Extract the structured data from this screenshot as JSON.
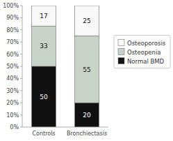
{
  "chart_data": {
    "type": "bar",
    "stacked": true,
    "categories": [
      "Controls",
      "Bronchiectasis"
    ],
    "series": [
      {
        "name": "Normal BMD",
        "color": "#111111",
        "values": [
          50,
          20
        ]
      },
      {
        "name": "Osteopenia",
        "color": "#c8d2c8",
        "values": [
          33,
          55
        ]
      },
      {
        "name": "Osteoporosis",
        "color": "#f8f8f8",
        "values": [
          17,
          25
        ]
      }
    ],
    "ylim": [
      0,
      100
    ],
    "yticks": [
      {
        "value": 0,
        "label": "0%"
      },
      {
        "value": 10,
        "label": "10%"
      },
      {
        "value": 20,
        "label": "20%"
      },
      {
        "value": 30,
        "label": "30%"
      },
      {
        "value": 40,
        "label": "40%"
      },
      {
        "value": 50,
        "label": "50%"
      },
      {
        "value": 60,
        "label": "60%"
      },
      {
        "value": 70,
        "label": "70%"
      },
      {
        "value": 80,
        "label": "80%"
      },
      {
        "value": 90,
        "label": "90%"
      },
      {
        "value": 100,
        "label": "100%"
      }
    ],
    "grid": false,
    "legend": "right",
    "data_labels": true
  }
}
